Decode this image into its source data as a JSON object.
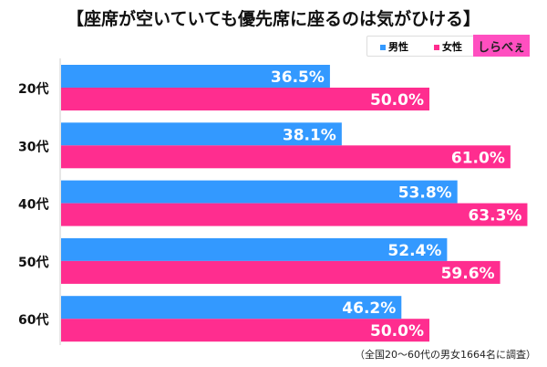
{
  "chart_data": {
    "type": "bar",
    "title": "【座席が空いていても優先席に座るのは気がひける】",
    "categories": [
      "20代",
      "30代",
      "40代",
      "50代",
      "60代"
    ],
    "series": [
      {
        "name": "男性",
        "color": "#3399ff",
        "values": [
          36.5,
          38.1,
          53.8,
          52.4,
          46.2
        ]
      },
      {
        "name": "女性",
        "color": "#ff2d8f",
        "values": [
          50.0,
          61.0,
          63.3,
          59.6,
          50.0
        ]
      }
    ],
    "xlim": [
      0,
      65
    ],
    "legend": "top-right",
    "note": "（全国20〜60代の男女1664名に調査）"
  },
  "logo": "しらべぇ"
}
